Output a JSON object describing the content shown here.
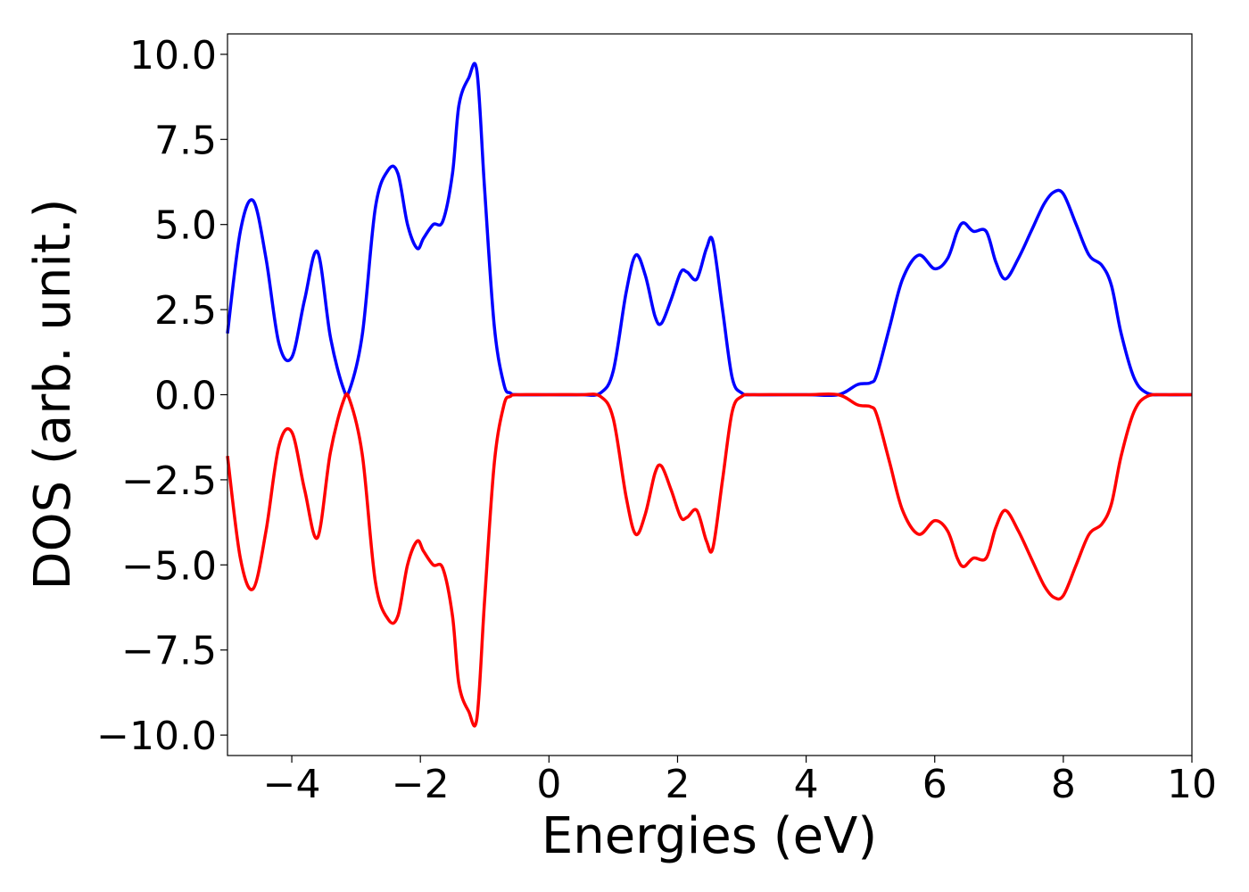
{
  "chart_data": {
    "type": "line",
    "title": "",
    "xlabel": "Energies (eV)",
    "ylabel": "DOS (arb. unit.)",
    "xlim": [
      -5,
      10
    ],
    "ylim": [
      -10.6,
      10.6
    ],
    "grid": false,
    "legend": "none",
    "xticks": [
      -4,
      -2,
      0,
      2,
      4,
      6,
      8,
      10
    ],
    "xtick_labels": [
      "−4",
      "−2",
      "0",
      "2",
      "4",
      "6",
      "8",
      "10"
    ],
    "yticks": [
      10,
      7.5,
      5,
      2.5,
      0,
      -2.5,
      -5,
      -7.5,
      -10
    ],
    "ytick_labels": [
      "10.0",
      "7.5",
      "5.0",
      "2.5",
      "0.0",
      "−2.5",
      "−5.0",
      "−7.5",
      "−10.0"
    ],
    "series": [
      {
        "color": "#0000ff",
        "x": [
          -5.0,
          -4.8,
          -4.6,
          -4.4,
          -4.2,
          -4.0,
          -3.8,
          -3.6,
          -3.4,
          -3.2,
          -3.1,
          -2.9,
          -2.7,
          -2.5,
          -2.35,
          -2.2,
          -2.05,
          -1.95,
          -1.8,
          -1.65,
          -1.5,
          -1.4,
          -1.25,
          -1.12,
          -1.0,
          -0.85,
          -0.7,
          -0.6,
          -0.5,
          0.0,
          0.5,
          0.8,
          1.0,
          1.2,
          1.35,
          1.5,
          1.65,
          1.75,
          1.9,
          2.05,
          2.15,
          2.3,
          2.45,
          2.55,
          2.7,
          2.85,
          3.0,
          3.2,
          4.0,
          4.5,
          4.8,
          5.0,
          5.1,
          5.3,
          5.5,
          5.75,
          6.0,
          6.2,
          6.35,
          6.45,
          6.6,
          6.8,
          6.95,
          7.1,
          7.3,
          7.5,
          7.7,
          7.85,
          8.0,
          8.2,
          8.4,
          8.6,
          8.75,
          8.9,
          9.1,
          9.3,
          9.6,
          10.0
        ],
        "y": [
          1.8,
          4.8,
          5.7,
          4.0,
          1.5,
          1.1,
          2.8,
          4.2,
          1.7,
          0.2,
          0.15,
          1.8,
          5.5,
          6.6,
          6.5,
          5.0,
          4.3,
          4.6,
          5.0,
          5.1,
          6.5,
          8.5,
          9.3,
          9.5,
          6.0,
          2.0,
          0.3,
          0.05,
          0.0,
          0.0,
          0.0,
          0.05,
          0.7,
          3.0,
          4.1,
          3.5,
          2.3,
          2.1,
          2.8,
          3.6,
          3.6,
          3.4,
          4.3,
          4.5,
          2.5,
          0.5,
          0.05,
          0.0,
          0.0,
          0.0,
          0.3,
          0.35,
          0.6,
          2.0,
          3.4,
          4.1,
          3.7,
          4.0,
          4.8,
          5.05,
          4.8,
          4.8,
          3.9,
          3.4,
          4.0,
          4.8,
          5.6,
          5.95,
          5.9,
          5.0,
          4.1,
          3.8,
          3.2,
          1.8,
          0.5,
          0.05,
          0.0,
          0.0
        ]
      },
      {
        "color": "#ff0000",
        "x": [
          -5.0,
          -4.8,
          -4.6,
          -4.4,
          -4.2,
          -4.0,
          -3.8,
          -3.6,
          -3.4,
          -3.2,
          -3.1,
          -2.9,
          -2.7,
          -2.5,
          -2.35,
          -2.2,
          -2.05,
          -1.95,
          -1.8,
          -1.65,
          -1.5,
          -1.4,
          -1.25,
          -1.12,
          -1.0,
          -0.85,
          -0.7,
          -0.6,
          -0.5,
          0.0,
          0.5,
          0.8,
          1.0,
          1.2,
          1.35,
          1.5,
          1.65,
          1.75,
          1.9,
          2.05,
          2.15,
          2.3,
          2.45,
          2.55,
          2.7,
          2.85,
          3.0,
          3.2,
          4.0,
          4.5,
          4.8,
          5.0,
          5.1,
          5.3,
          5.5,
          5.75,
          6.0,
          6.2,
          6.35,
          6.45,
          6.6,
          6.8,
          6.95,
          7.1,
          7.3,
          7.5,
          7.7,
          7.85,
          8.0,
          8.2,
          8.4,
          8.6,
          8.75,
          8.9,
          9.1,
          9.3,
          9.6,
          10.0
        ],
        "y": [
          -1.8,
          -4.8,
          -5.7,
          -4.0,
          -1.5,
          -1.1,
          -2.8,
          -4.2,
          -1.7,
          -0.2,
          -0.15,
          -1.8,
          -5.5,
          -6.6,
          -6.5,
          -5.0,
          -4.3,
          -4.6,
          -5.0,
          -5.1,
          -6.5,
          -8.5,
          -9.3,
          -9.5,
          -6.0,
          -2.0,
          -0.3,
          -0.05,
          0.0,
          0.0,
          0.0,
          -0.05,
          -0.7,
          -3.0,
          -4.1,
          -3.5,
          -2.3,
          -2.1,
          -2.8,
          -3.6,
          -3.6,
          -3.4,
          -4.3,
          -4.5,
          -2.5,
          -0.5,
          -0.05,
          0.0,
          0.0,
          0.0,
          -0.3,
          -0.35,
          -0.6,
          -2.0,
          -3.4,
          -4.1,
          -3.7,
          -4.0,
          -4.8,
          -5.05,
          -4.8,
          -4.8,
          -3.9,
          -3.4,
          -4.0,
          -4.8,
          -5.6,
          -5.95,
          -5.9,
          -5.0,
          -4.1,
          -3.8,
          -3.2,
          -1.8,
          -0.5,
          -0.05,
          0.0,
          0.0
        ]
      }
    ]
  }
}
